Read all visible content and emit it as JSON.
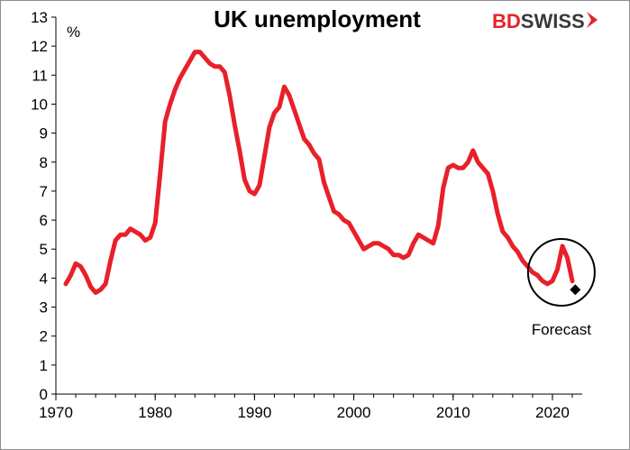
{
  "colors": {
    "series": "#e8202a",
    "axis": "#000000",
    "brand_red": "#e3242b",
    "brand_dark": "#3a3a3a",
    "forecast_marker": "#000000"
  },
  "logo": {
    "part1": "BD",
    "part2": "SWISS",
    "icon": "chevron-right-icon"
  },
  "chart_data": {
    "type": "line",
    "title": "UK unemployment",
    "ylabel": "%",
    "xlabel": "",
    "xlim": [
      1970,
      2023
    ],
    "ylim": [
      0,
      13
    ],
    "x_ticks": [
      1970,
      1980,
      1990,
      2000,
      2010,
      2020
    ],
    "y_ticks": [
      0,
      1,
      2,
      3,
      4,
      5,
      6,
      7,
      8,
      9,
      10,
      11,
      12,
      13
    ],
    "grid": false,
    "legend": "none",
    "series": [
      {
        "values": [
          [
            1971.0,
            3.8
          ],
          [
            1971.5,
            4.1
          ],
          [
            1972.0,
            4.5
          ],
          [
            1972.5,
            4.4
          ],
          [
            1973.0,
            4.1
          ],
          [
            1973.5,
            3.7
          ],
          [
            1974.0,
            3.5
          ],
          [
            1974.5,
            3.6
          ],
          [
            1975.0,
            3.8
          ],
          [
            1975.5,
            4.6
          ],
          [
            1976.0,
            5.3
          ],
          [
            1976.5,
            5.5
          ],
          [
            1977.0,
            5.5
          ],
          [
            1977.5,
            5.7
          ],
          [
            1978.0,
            5.6
          ],
          [
            1978.5,
            5.5
          ],
          [
            1979.0,
            5.3
          ],
          [
            1979.5,
            5.4
          ],
          [
            1980.0,
            5.9
          ],
          [
            1980.5,
            7.6
          ],
          [
            1981.0,
            9.4
          ],
          [
            1981.5,
            10.0
          ],
          [
            1982.0,
            10.5
          ],
          [
            1982.5,
            10.9
          ],
          [
            1983.0,
            11.2
          ],
          [
            1983.5,
            11.5
          ],
          [
            1984.0,
            11.8
          ],
          [
            1984.5,
            11.8
          ],
          [
            1985.0,
            11.6
          ],
          [
            1985.5,
            11.4
          ],
          [
            1986.0,
            11.3
          ],
          [
            1986.5,
            11.3
          ],
          [
            1987.0,
            11.1
          ],
          [
            1987.5,
            10.3
          ],
          [
            1988.0,
            9.3
          ],
          [
            1988.5,
            8.4
          ],
          [
            1989.0,
            7.4
          ],
          [
            1989.5,
            7.0
          ],
          [
            1990.0,
            6.9
          ],
          [
            1990.5,
            7.2
          ],
          [
            1991.0,
            8.2
          ],
          [
            1991.5,
            9.2
          ],
          [
            1992.0,
            9.7
          ],
          [
            1992.5,
            9.9
          ],
          [
            1993.0,
            10.6
          ],
          [
            1993.5,
            10.3
          ],
          [
            1994.0,
            9.8
          ],
          [
            1994.5,
            9.3
          ],
          [
            1995.0,
            8.8
          ],
          [
            1995.5,
            8.6
          ],
          [
            1996.0,
            8.3
          ],
          [
            1996.5,
            8.1
          ],
          [
            1997.0,
            7.3
          ],
          [
            1997.5,
            6.8
          ],
          [
            1998.0,
            6.3
          ],
          [
            1998.5,
            6.2
          ],
          [
            1999.0,
            6.0
          ],
          [
            1999.5,
            5.9
          ],
          [
            2000.0,
            5.6
          ],
          [
            2000.5,
            5.3
          ],
          [
            2001.0,
            5.0
          ],
          [
            2001.5,
            5.1
          ],
          [
            2002.0,
            5.2
          ],
          [
            2002.5,
            5.2
          ],
          [
            2003.0,
            5.1
          ],
          [
            2003.5,
            5.0
          ],
          [
            2004.0,
            4.8
          ],
          [
            2004.5,
            4.8
          ],
          [
            2005.0,
            4.7
          ],
          [
            2005.5,
            4.8
          ],
          [
            2006.0,
            5.2
          ],
          [
            2006.5,
            5.5
          ],
          [
            2007.0,
            5.4
          ],
          [
            2007.5,
            5.3
          ],
          [
            2008.0,
            5.2
          ],
          [
            2008.5,
            5.8
          ],
          [
            2009.0,
            7.1
          ],
          [
            2009.5,
            7.8
          ],
          [
            2010.0,
            7.9
          ],
          [
            2010.5,
            7.8
          ],
          [
            2011.0,
            7.8
          ],
          [
            2011.5,
            8.0
          ],
          [
            2012.0,
            8.4
          ],
          [
            2012.5,
            8.0
          ],
          [
            2013.0,
            7.8
          ],
          [
            2013.5,
            7.6
          ],
          [
            2014.0,
            7.0
          ],
          [
            2014.5,
            6.2
          ],
          [
            2015.0,
            5.6
          ],
          [
            2015.5,
            5.4
          ],
          [
            2016.0,
            5.1
          ],
          [
            2016.5,
            4.9
          ],
          [
            2017.0,
            4.6
          ],
          [
            2017.5,
            4.4
          ],
          [
            2018.0,
            4.2
          ],
          [
            2018.5,
            4.1
          ],
          [
            2019.0,
            3.9
          ],
          [
            2019.5,
            3.8
          ],
          [
            2020.0,
            3.9
          ],
          [
            2020.5,
            4.3
          ],
          [
            2021.0,
            5.1
          ],
          [
            2021.5,
            4.7
          ],
          [
            2022.0,
            3.9
          ]
        ]
      }
    ],
    "forecast": {
      "x": 2022.3,
      "y": 3.6
    },
    "annotations": [
      {
        "text": "Forecast",
        "x": 2020.9,
        "y": 4.2
      }
    ]
  }
}
